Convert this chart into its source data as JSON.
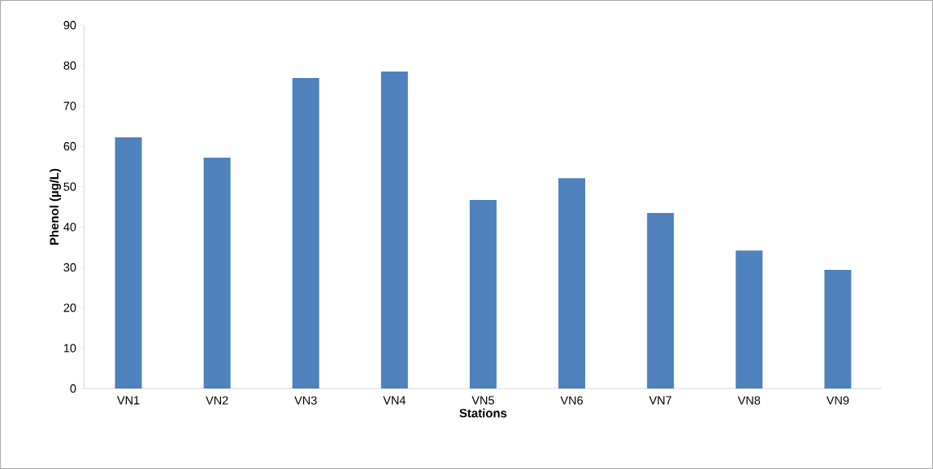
{
  "chart_data": {
    "type": "bar",
    "xlabel": "Stations",
    "ylabel": "Phenol (µg/L)",
    "categories": [
      "VN1",
      "VN2",
      "VN3",
      "VN4",
      "VN5",
      "VN6",
      "VN7",
      "VN8",
      "VN9"
    ],
    "values": [
      62.2,
      57.2,
      76.9,
      78.5,
      46.7,
      52.1,
      43.5,
      34.2,
      29.4
    ],
    "color": "#4f81bd",
    "ylim": [
      0,
      90
    ],
    "yticks": [
      0,
      10,
      20,
      30,
      40,
      50,
      60,
      70,
      80,
      90
    ]
  }
}
